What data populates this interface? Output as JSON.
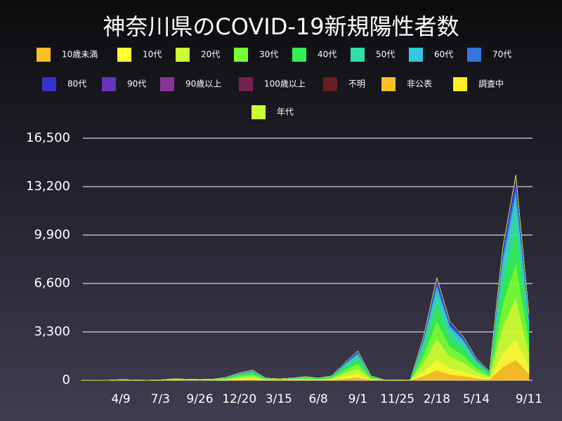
{
  "chart_data": {
    "type": "stacked_area",
    "title": "神奈川県のCOVID-19新規陽性者数",
    "categories": [
      null,
      null,
      null,
      "4/9",
      null,
      null,
      "7/3",
      null,
      null,
      "9/26",
      null,
      null,
      "12/20",
      null,
      null,
      "3/15",
      null,
      null,
      "6/8",
      null,
      null,
      "9/1",
      null,
      null,
      "11/25",
      null,
      null,
      "2/18",
      null,
      null,
      "5/14",
      null,
      null,
      null,
      "9/11"
    ],
    "series": [
      {
        "name": "10歳未満",
        "color": "#fbbf24",
        "values": [
          0,
          0,
          1,
          5,
          3,
          1,
          3,
          10,
          8,
          6,
          8,
          20,
          50,
          70,
          15,
          10,
          15,
          25,
          15,
          30,
          120,
          200,
          30,
          3,
          2,
          4,
          300,
          700,
          400,
          300,
          150,
          60,
          900,
          1400,
          450
        ]
      },
      {
        "name": "10代",
        "color": "#ffff33",
        "values": [
          0,
          0,
          1,
          5,
          3,
          1,
          3,
          10,
          8,
          6,
          8,
          20,
          50,
          70,
          15,
          10,
          15,
          25,
          15,
          30,
          120,
          200,
          30,
          3,
          2,
          4,
          300,
          700,
          400,
          300,
          150,
          60,
          900,
          1400,
          450
        ]
      },
      {
        "name": "20代",
        "color": "#ccff33",
        "values": [
          0,
          0,
          2,
          10,
          6,
          2,
          6,
          20,
          16,
          12,
          16,
          40,
          100,
          140,
          30,
          20,
          30,
          50,
          30,
          60,
          240,
          400,
          60,
          6,
          4,
          8,
          600,
          1400,
          800,
          600,
          300,
          120,
          1800,
          2800,
          900
        ]
      },
      {
        "name": "30代",
        "color": "#77ff33",
        "values": [
          0,
          0,
          2,
          9,
          5,
          2,
          5,
          17,
          14,
          10,
          14,
          34,
          85,
          119,
          26,
          17,
          26,
          43,
          26,
          51,
          204,
          340,
          51,
          5,
          3,
          7,
          510,
          1190,
          680,
          510,
          255,
          102,
          1530,
          2380,
          765
        ]
      },
      {
        "name": "40代",
        "color": "#33ee55",
        "values": [
          0,
          0,
          2,
          8,
          5,
          2,
          5,
          16,
          13,
          10,
          13,
          32,
          80,
          112,
          24,
          16,
          24,
          40,
          24,
          48,
          192,
          320,
          48,
          5,
          3,
          6,
          480,
          1120,
          640,
          480,
          240,
          96,
          1440,
          2240,
          720
        ]
      },
      {
        "name": "50代",
        "color": "#33ddaa",
        "values": [
          0,
          0,
          1,
          6,
          4,
          1,
          4,
          12,
          10,
          7,
          10,
          24,
          60,
          84,
          18,
          12,
          18,
          30,
          18,
          36,
          144,
          240,
          36,
          4,
          2,
          5,
          360,
          840,
          480,
          360,
          180,
          72,
          1080,
          1680,
          540
        ]
      },
      {
        "name": "60代",
        "color": "#33c8dd",
        "values": [
          0,
          0,
          1,
          3,
          2,
          1,
          2,
          6,
          5,
          4,
          5,
          12,
          30,
          42,
          9,
          6,
          9,
          15,
          9,
          18,
          72,
          120,
          18,
          2,
          1,
          2,
          180,
          420,
          240,
          180,
          90,
          36,
          540,
          840,
          270
        ]
      },
      {
        "name": "70代",
        "color": "#3377dd",
        "values": [
          0,
          0,
          0,
          2,
          1,
          0,
          1,
          4,
          3,
          2,
          3,
          8,
          20,
          28,
          6,
          4,
          6,
          10,
          6,
          12,
          48,
          80,
          12,
          1,
          1,
          2,
          120,
          280,
          160,
          120,
          60,
          24,
          360,
          560,
          180
        ]
      },
      {
        "name": "80代",
        "color": "#3333cc",
        "values": [
          0,
          0,
          0,
          2,
          1,
          0,
          1,
          3,
          2,
          2,
          2,
          6,
          15,
          21,
          5,
          3,
          5,
          8,
          5,
          9,
          36,
          60,
          9,
          1,
          1,
          1,
          90,
          210,
          120,
          90,
          45,
          18,
          270,
          420,
          135
        ]
      },
      {
        "name": "90代",
        "color": "#6633bb",
        "values": [
          0,
          0,
          0,
          1,
          1,
          0,
          1,
          2,
          2,
          1,
          2,
          4,
          10,
          14,
          3,
          2,
          3,
          5,
          3,
          6,
          24,
          40,
          6,
          1,
          0,
          1,
          60,
          140,
          80,
          60,
          30,
          12,
          180,
          280,
          90
        ]
      },
      {
        "name": "90歳以上",
        "color": "#883399",
        "values": [
          0,
          0,
          0,
          0,
          0,
          0,
          0,
          0,
          0,
          0,
          0,
          0,
          0,
          0,
          0,
          0,
          0,
          0,
          0,
          0,
          0,
          0,
          0,
          0,
          0,
          0,
          0,
          0,
          0,
          0,
          0,
          0,
          0,
          0,
          0
        ]
      },
      {
        "name": "100歳以上",
        "color": "#771f4f",
        "values": [
          0,
          0,
          0,
          0,
          0,
          0,
          0,
          0,
          0,
          0,
          0,
          0,
          0,
          0,
          0,
          0,
          0,
          0,
          0,
          0,
          0,
          0,
          0,
          0,
          0,
          0,
          0,
          0,
          0,
          0,
          0,
          0,
          0,
          0,
          0
        ]
      },
      {
        "name": "不明",
        "color": "#661f1f",
        "values": [
          0,
          0,
          0,
          0,
          0,
          0,
          0,
          0,
          0,
          0,
          0,
          0,
          0,
          0,
          0,
          0,
          0,
          0,
          0,
          0,
          0,
          0,
          0,
          0,
          0,
          0,
          0,
          0,
          0,
          0,
          0,
          0,
          0,
          0,
          0
        ]
      },
      {
        "name": "非公表",
        "color": "#fbbf24",
        "values": [
          0,
          0,
          0,
          0,
          0,
          0,
          0,
          0,
          0,
          0,
          0,
          0,
          0,
          0,
          0,
          0,
          0,
          0,
          0,
          0,
          0,
          0,
          0,
          0,
          0,
          0,
          0,
          0,
          0,
          0,
          0,
          0,
          0,
          0,
          0
        ]
      },
      {
        "name": "調査中",
        "color": "#ffee22",
        "values": [
          0,
          0,
          0,
          0,
          0,
          0,
          0,
          0,
          0,
          0,
          0,
          0,
          0,
          0,
          0,
          0,
          0,
          0,
          0,
          0,
          0,
          0,
          0,
          0,
          0,
          0,
          0,
          0,
          0,
          0,
          0,
          0,
          0,
          0,
          0
        ]
      },
      {
        "name": "年代",
        "color": "#ccff33",
        "values": [
          0,
          0,
          0,
          0,
          0,
          0,
          0,
          0,
          0,
          0,
          0,
          0,
          0,
          0,
          0,
          0,
          0,
          0,
          0,
          0,
          0,
          0,
          0,
          0,
          0,
          0,
          0,
          0,
          0,
          0,
          0,
          0,
          0,
          0,
          0
        ]
      }
    ],
    "ylim": [
      0,
      16500
    ],
    "yticks": [
      0,
      {
        "value": 3300,
        "label": "3,300"
      },
      {
        "value": 6600,
        "label": "6,600"
      },
      {
        "value": 9900,
        "label": "9,900"
      },
      {
        "value": 13200,
        "label": "13,200"
      },
      {
        "value": 16500,
        "label": "16,500"
      }
    ],
    "grid": true
  }
}
